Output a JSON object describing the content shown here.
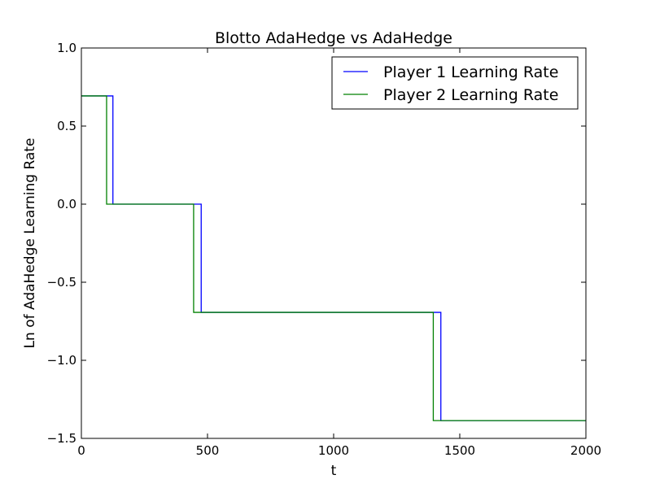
{
  "chart_data": {
    "type": "line",
    "title": "Blotto AdaHedge vs AdaHedge",
    "xlabel": "t",
    "ylabel": "Ln of AdaHedge Learning Rate",
    "xlim": [
      0,
      2000
    ],
    "ylim": [
      -1.5,
      1.0
    ],
    "xticks": [
      0,
      500,
      1000,
      1500,
      2000
    ],
    "xtick_labels": [
      "0",
      "500",
      "1000",
      "1500",
      "2000"
    ],
    "yticks": [
      -1.5,
      -1.0,
      -0.5,
      0.0,
      0.5,
      1.0
    ],
    "ytick_labels": [
      "−1.5",
      "−1.0",
      "−0.5",
      "0.0",
      "0.5",
      "1.0"
    ],
    "grid": false,
    "legend": "top-right",
    "series": [
      {
        "name": "Player 1 Learning Rate",
        "color": "#0000ff",
        "step": "post",
        "x": [
          0,
          125,
          475,
          1425,
          2000
        ],
        "y": [
          0.693,
          0.0,
          -0.693,
          -1.386,
          -1.386
        ]
      },
      {
        "name": "Player 2 Learning Rate",
        "color": "#008000",
        "step": "post",
        "x": [
          0,
          100,
          445,
          1395,
          2000
        ],
        "y": [
          0.693,
          0.0,
          -0.693,
          -1.386,
          -1.386
        ]
      }
    ]
  }
}
